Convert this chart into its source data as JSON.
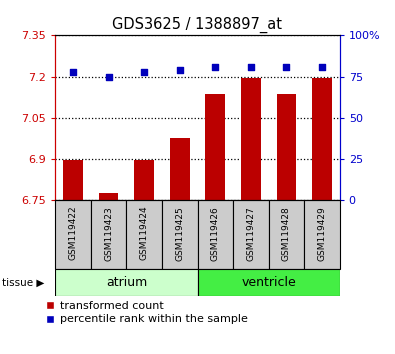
{
  "title": "GDS3625 / 1388897_at",
  "samples": [
    "GSM119422",
    "GSM119423",
    "GSM119424",
    "GSM119425",
    "GSM119426",
    "GSM119427",
    "GSM119428",
    "GSM119429"
  ],
  "transformed_counts": [
    6.895,
    6.775,
    6.895,
    6.975,
    7.135,
    7.195,
    7.135,
    7.195
  ],
  "percentile_ranks": [
    78,
    75,
    78,
    79,
    81,
    81,
    81,
    81
  ],
  "ylim_left": [
    6.75,
    7.35
  ],
  "ylim_right": [
    0,
    100
  ],
  "yticks_left": [
    6.75,
    6.9,
    7.05,
    7.2,
    7.35
  ],
  "yticks_right": [
    0,
    25,
    50,
    75,
    100
  ],
  "ytick_labels_left": [
    "6.75",
    "6.9",
    "7.05",
    "7.2",
    "7.35"
  ],
  "ytick_labels_right": [
    "0",
    "25",
    "50",
    "75",
    "100%"
  ],
  "bar_color": "#bb0000",
  "scatter_color": "#0000bb",
  "tissue_colors": {
    "atrium": "#ccffcc",
    "ventricle": "#44ee44"
  },
  "bar_width": 0.55,
  "legend_bar_label": "transformed count",
  "legend_scatter_label": "percentile rank within the sample"
}
